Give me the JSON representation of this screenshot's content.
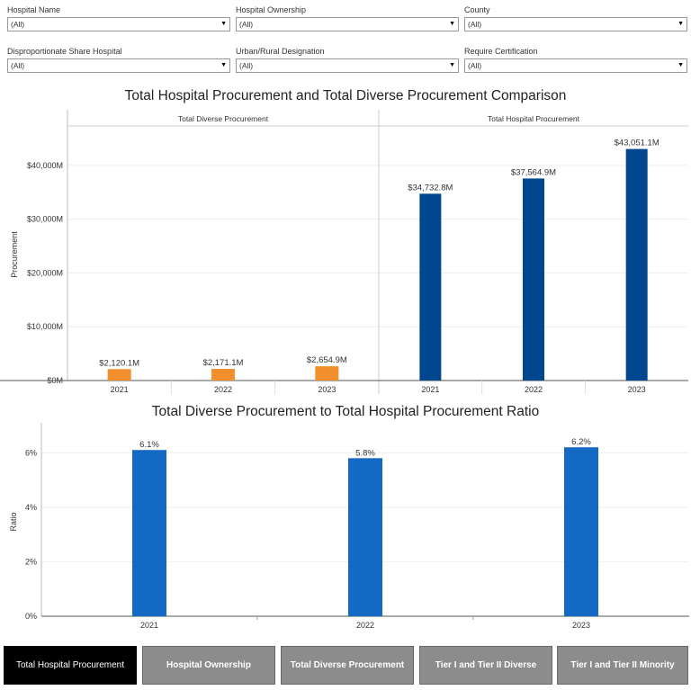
{
  "filters": [
    {
      "label": "Hospital Name",
      "value": "(All)"
    },
    {
      "label": "Hospital Ownership",
      "value": "(All)"
    },
    {
      "label": "County",
      "value": "(All)"
    },
    {
      "label": "Disproportionate Share Hospital",
      "value": "(All)"
    },
    {
      "label": "Urban/Rural Designation",
      "value": "(All)"
    },
    {
      "label": "Require Certification",
      "value": "(All)"
    }
  ],
  "chart_data": [
    {
      "type": "bar",
      "title": "Total Hospital Procurement and Total Diverse Procurement Comparison",
      "ylabel": "Procurement",
      "ylim": [
        0,
        47000
      ],
      "yticks": [
        "$0M",
        "$10,000M",
        "$20,000M",
        "$30,000M",
        "$40,000M"
      ],
      "ytick_values": [
        0,
        10000,
        20000,
        30000,
        40000
      ],
      "panels": [
        {
          "name": "Total Diverse Procurement",
          "color": "#f28e2b",
          "categories": [
            "2021",
            "2022",
            "2023"
          ],
          "values": [
            2120.1,
            2171.1,
            2654.9
          ],
          "labels": [
            "$2,120.1M",
            "$2,171.1M",
            "$2,654.9M"
          ]
        },
        {
          "name": "Total Hospital Procurement",
          "color": "#00478f",
          "categories": [
            "2021",
            "2022",
            "2023"
          ],
          "values": [
            34732.8,
            37564.9,
            43051.1
          ],
          "labels": [
            "$34,732.8M",
            "$37,564.9M",
            "$43,051.1M"
          ]
        }
      ]
    },
    {
      "type": "bar",
      "title": "Total Diverse Procurement to Total Hospital Procurement Ratio",
      "ylabel": "Ratio",
      "ylim": [
        0,
        6.9
      ],
      "yticks": [
        "0%",
        "2%",
        "4%",
        "6%"
      ],
      "ytick_values": [
        0,
        2,
        4,
        6
      ],
      "color": "#1469c5",
      "categories": [
        "2021",
        "2022",
        "2023"
      ],
      "values": [
        6.1,
        5.8,
        6.2
      ],
      "labels": [
        "6.1%",
        "5.8%",
        "6.2%"
      ]
    }
  ],
  "tabs": [
    {
      "label": "Total Hospital Procurement",
      "active": true
    },
    {
      "label": "Hospital Ownership",
      "active": false
    },
    {
      "label": "Total Diverse Procurement",
      "active": false
    },
    {
      "label": "Tier I and Tier II Diverse",
      "active": false
    },
    {
      "label": "Tier I and Tier II Minority",
      "active": false
    }
  ]
}
